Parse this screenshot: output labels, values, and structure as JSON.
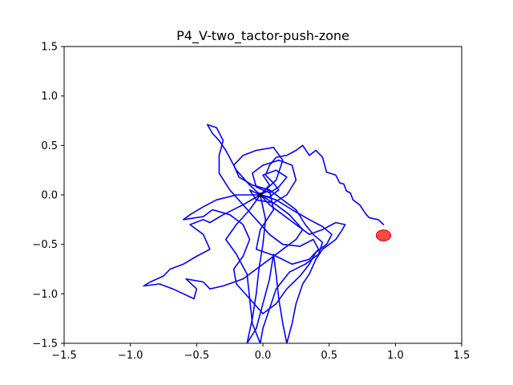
{
  "chart_data": {
    "type": "line",
    "title": "P4_V-two_tactor-push-zone",
    "xlabel": "",
    "ylabel": "",
    "xlim": [
      -1.5,
      1.5
    ],
    "ylim": [
      -1.5,
      1.5
    ],
    "xticks": [
      -1.5,
      -1.0,
      -0.5,
      0.0,
      0.5,
      1.0,
      1.5
    ],
    "yticks": [
      -1.5,
      -1.0,
      -0.5,
      0.0,
      0.5,
      1.0,
      1.5
    ],
    "xtick_labels": [
      "−1.5",
      "−1.0",
      "−0.5",
      "0.0",
      "0.5",
      "1.0",
      "1.5"
    ],
    "ytick_labels": [
      "−1.5",
      "−1.0",
      "−0.5",
      "0.0",
      "0.5",
      "1.0",
      "1.5"
    ],
    "grid": false,
    "colors": {
      "trajectory": "#0000ff",
      "target": "#ff0000",
      "origin": "#000000"
    },
    "target": {
      "x": 0.91,
      "y": -0.41,
      "rx": 0.055,
      "ry": 0.055
    },
    "origin": {
      "x": -0.02,
      "y": 0.0
    },
    "series": [
      {
        "points": [
          [
            0.91,
            -0.3
          ],
          [
            0.87,
            -0.25
          ],
          [
            0.8,
            -0.23
          ],
          [
            0.77,
            -0.18
          ],
          [
            0.73,
            -0.1
          ],
          [
            0.68,
            -0.05
          ],
          [
            0.66,
            0.02
          ],
          [
            0.63,
            0.04
          ],
          [
            0.61,
            0.11
          ],
          [
            0.58,
            0.12
          ],
          [
            0.55,
            0.2
          ],
          [
            0.48,
            0.23
          ],
          [
            0.45,
            0.38
          ],
          [
            0.4,
            0.45
          ],
          [
            0.35,
            0.4
          ],
          [
            0.3,
            0.5
          ],
          [
            0.25,
            0.45
          ],
          [
            0.18,
            0.4
          ],
          [
            0.1,
            0.38
          ],
          [
            0.05,
            0.3
          ],
          [
            0.02,
            0.2
          ],
          [
            0.08,
            0.12
          ],
          [
            0.12,
            0.05
          ],
          [
            0.05,
            -0.02
          ],
          [
            -0.02,
            0.0
          ]
        ]
      },
      {
        "points": [
          [
            -0.02,
            0.0
          ],
          [
            -0.1,
            0.1
          ],
          [
            -0.2,
            0.25
          ],
          [
            -0.28,
            0.45
          ],
          [
            -0.33,
            0.55
          ],
          [
            -0.38,
            0.62
          ],
          [
            -0.42,
            0.71
          ],
          [
            -0.35,
            0.68
          ],
          [
            -0.3,
            0.55
          ],
          [
            -0.33,
            0.4
          ],
          [
            -0.33,
            0.22
          ],
          [
            -0.25,
            0.05
          ],
          [
            -0.15,
            -0.1
          ],
          [
            -0.05,
            -0.25
          ],
          [
            0.05,
            -0.4
          ],
          [
            0.15,
            -0.5
          ],
          [
            0.28,
            -0.52
          ],
          [
            0.38,
            -0.45
          ],
          [
            0.42,
            -0.55
          ],
          [
            0.35,
            -0.65
          ],
          [
            0.22,
            -0.7
          ],
          [
            0.1,
            -0.62
          ],
          [
            -0.05,
            -0.55
          ],
          [
            -0.02,
            -0.35
          ],
          [
            0.08,
            -0.15
          ],
          [
            0.05,
            0.05
          ],
          [
            -0.02,
            0.0
          ]
        ]
      },
      {
        "points": [
          [
            -0.02,
            0.0
          ],
          [
            -0.15,
            -0.1
          ],
          [
            -0.3,
            -0.2
          ],
          [
            -0.4,
            -0.28
          ],
          [
            -0.45,
            -0.25
          ],
          [
            -0.55,
            -0.3
          ],
          [
            -0.45,
            -0.4
          ],
          [
            -0.4,
            -0.55
          ],
          [
            -0.5,
            -0.62
          ],
          [
            -0.6,
            -0.7
          ],
          [
            -0.7,
            -0.75
          ],
          [
            -0.75,
            -0.82
          ],
          [
            -0.85,
            -0.88
          ],
          [
            -0.9,
            -0.92
          ],
          [
            -0.78,
            -0.9
          ],
          [
            -0.68,
            -0.95
          ],
          [
            -0.6,
            -1.0
          ],
          [
            -0.52,
            -1.05
          ],
          [
            -0.5,
            -0.95
          ],
          [
            -0.58,
            -0.85
          ],
          [
            -0.45,
            -0.88
          ],
          [
            -0.4,
            -0.95
          ],
          [
            -0.3,
            -0.92
          ],
          [
            -0.15,
            -0.85
          ],
          [
            -0.05,
            -0.75
          ],
          [
            0.05,
            -0.65
          ],
          [
            0.15,
            -0.55
          ],
          [
            0.25,
            -0.45
          ],
          [
            0.3,
            -0.35
          ],
          [
            0.2,
            -0.2
          ],
          [
            0.1,
            -0.1
          ],
          [
            -0.02,
            0.0
          ]
        ]
      },
      {
        "points": [
          [
            -0.02,
            0.0
          ],
          [
            0.02,
            -0.25
          ],
          [
            0.0,
            -0.5
          ],
          [
            -0.03,
            -0.75
          ],
          [
            -0.05,
            -1.0
          ],
          [
            -0.08,
            -1.25
          ],
          [
            -0.12,
            -1.5
          ],
          [
            -0.05,
            -1.35
          ],
          [
            0.0,
            -1.1
          ],
          [
            0.05,
            -0.85
          ],
          [
            0.08,
            -0.6
          ],
          [
            0.1,
            -0.8
          ],
          [
            0.12,
            -1.05
          ],
          [
            0.15,
            -1.3
          ],
          [
            0.18,
            -1.5
          ],
          [
            0.22,
            -1.3
          ],
          [
            0.25,
            -1.1
          ],
          [
            0.3,
            -0.9
          ],
          [
            0.35,
            -0.8
          ],
          [
            0.4,
            -0.65
          ],
          [
            0.45,
            -0.55
          ],
          [
            0.55,
            -0.45
          ],
          [
            0.6,
            -0.35
          ],
          [
            0.62,
            -0.3
          ],
          [
            0.55,
            -0.28
          ],
          [
            0.45,
            -0.35
          ],
          [
            0.35,
            -0.4
          ],
          [
            0.25,
            -0.3
          ],
          [
            0.15,
            -0.2
          ],
          [
            0.05,
            -0.1
          ],
          [
            -0.02,
            0.0
          ]
        ]
      },
      {
        "points": [
          [
            -0.02,
            0.0
          ],
          [
            0.1,
            0.15
          ],
          [
            0.15,
            0.35
          ],
          [
            0.08,
            0.48
          ],
          [
            -0.05,
            0.45
          ],
          [
            -0.15,
            0.4
          ],
          [
            -0.22,
            0.3
          ],
          [
            -0.18,
            0.18
          ],
          [
            -0.08,
            0.1
          ],
          [
            0.05,
            0.05
          ],
          [
            0.15,
            -0.05
          ],
          [
            0.25,
            -0.15
          ],
          [
            0.32,
            -0.3
          ],
          [
            0.38,
            -0.4
          ],
          [
            0.45,
            -0.48
          ],
          [
            0.42,
            -0.6
          ],
          [
            0.32,
            -0.7
          ],
          [
            0.2,
            -0.78
          ],
          [
            0.1,
            -0.95
          ],
          [
            0.05,
            -1.15
          ],
          [
            0.0,
            -1.35
          ],
          [
            -0.02,
            -1.5
          ],
          [
            -0.08,
            -1.3
          ],
          [
            -0.1,
            -1.05
          ],
          [
            -0.12,
            -0.8
          ],
          [
            -0.2,
            -0.6
          ],
          [
            -0.28,
            -0.45
          ],
          [
            -0.2,
            -0.3
          ],
          [
            -0.1,
            -0.15
          ],
          [
            -0.02,
            0.0
          ]
        ]
      },
      {
        "points": [
          [
            -0.02,
            0.0
          ],
          [
            0.05,
            0.1
          ],
          [
            0.0,
            0.2
          ],
          [
            0.1,
            0.25
          ],
          [
            0.18,
            0.18
          ],
          [
            0.12,
            0.08
          ],
          [
            0.05,
            0.02
          ],
          [
            -0.05,
            0.08
          ],
          [
            -0.08,
            0.22
          ],
          [
            0.0,
            0.3
          ],
          [
            0.12,
            0.35
          ],
          [
            0.22,
            0.3
          ],
          [
            0.25,
            0.15
          ],
          [
            0.18,
            0.0
          ],
          [
            0.08,
            -0.08
          ],
          [
            -0.05,
            -0.05
          ],
          [
            -0.1,
            0.05
          ],
          [
            -0.02,
            0.0
          ]
        ]
      },
      {
        "points": [
          [
            -0.02,
            0.0
          ],
          [
            -0.2,
            0.0
          ],
          [
            -0.35,
            -0.05
          ],
          [
            -0.45,
            -0.12
          ],
          [
            -0.55,
            -0.2
          ],
          [
            -0.6,
            -0.25
          ],
          [
            -0.45,
            -0.22
          ],
          [
            -0.38,
            -0.15
          ],
          [
            -0.25,
            -0.2
          ],
          [
            -0.15,
            -0.3
          ],
          [
            -0.1,
            -0.45
          ],
          [
            -0.15,
            -0.62
          ],
          [
            -0.22,
            -0.75
          ],
          [
            -0.2,
            -0.9
          ],
          [
            -0.1,
            -1.05
          ],
          [
            0.0,
            -1.2
          ],
          [
            0.1,
            -1.1
          ],
          [
            0.18,
            -0.95
          ],
          [
            0.28,
            -0.82
          ],
          [
            0.35,
            -0.7
          ],
          [
            0.4,
            -0.58
          ],
          [
            0.48,
            -0.5
          ],
          [
            0.52,
            -0.4
          ],
          [
            0.45,
            -0.32
          ],
          [
            0.35,
            -0.25
          ],
          [
            0.22,
            -0.15
          ],
          [
            0.1,
            -0.05
          ],
          [
            -0.02,
            0.0
          ]
        ]
      }
    ]
  }
}
